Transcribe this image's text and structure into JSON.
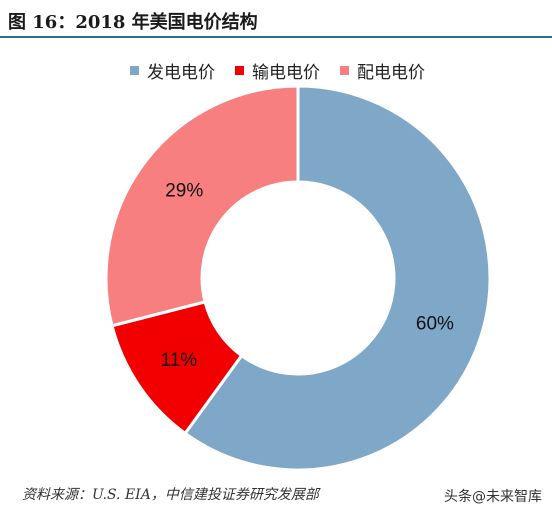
{
  "title": "图 16：2018 年美国电价结构",
  "source": "资料来源：U.S. EIA，中信建投证券研究发展部",
  "watermark": "头条@未来智库",
  "chart_data": {
    "type": "pie",
    "donut": true,
    "legend_position": "top",
    "categories": [
      "发电电价",
      "输电电价",
      "配电电价"
    ],
    "values": [
      60,
      11,
      29
    ],
    "labels": [
      "60%",
      "11%",
      "29%"
    ],
    "colors": [
      "#7fa7c8",
      "#f20000",
      "#f77f7f"
    ]
  }
}
